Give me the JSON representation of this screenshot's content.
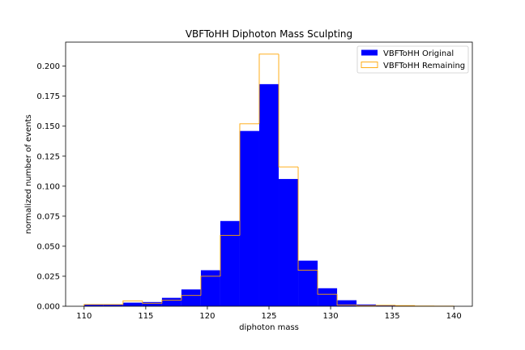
{
  "chart_data": {
    "type": "bar",
    "title": "VBFToHH Diphoton Mass Sculpting",
    "xlabel": "diphoton mass",
    "ylabel": "normalized number of events",
    "xlim": [
      108.5,
      141.5
    ],
    "ylim": [
      0,
      0.22
    ],
    "xticks": [
      110,
      115,
      120,
      125,
      130,
      135,
      140
    ],
    "yticks": [
      0.0,
      0.025,
      0.05,
      0.075,
      0.1,
      0.125,
      0.15,
      0.175,
      0.2
    ],
    "bin_edges": [
      110,
      111.5789,
      113.1579,
      114.7368,
      116.3158,
      117.8947,
      119.4737,
      121.0526,
      122.6316,
      124.2105,
      125.7895,
      127.3684,
      128.9474,
      130.5263,
      132.1053,
      133.6842,
      135.2632,
      136.8421,
      138.4211,
      140
    ],
    "grid": false,
    "legend_position": "top-right",
    "series": [
      {
        "name": "VBFToHH Original",
        "style": "filled",
        "color": "#0000ff",
        "values": [
          0.0015,
          0.0015,
          0.003,
          0.0035,
          0.007,
          0.014,
          0.03,
          0.071,
          0.146,
          0.185,
          0.106,
          0.038,
          0.015,
          0.005,
          0.0015,
          0.001,
          0.0003,
          0.0002,
          0.0001
        ]
      },
      {
        "name": "VBFToHH Remaining",
        "style": "step",
        "color": "#ffa500",
        "values": [
          0.0015,
          0.0015,
          0.0045,
          0.0025,
          0.005,
          0.009,
          0.025,
          0.059,
          0.152,
          0.21,
          0.116,
          0.03,
          0.01,
          0.001,
          0.0005,
          0.0008,
          0.0005,
          0.0002,
          0.0001
        ]
      }
    ]
  }
}
